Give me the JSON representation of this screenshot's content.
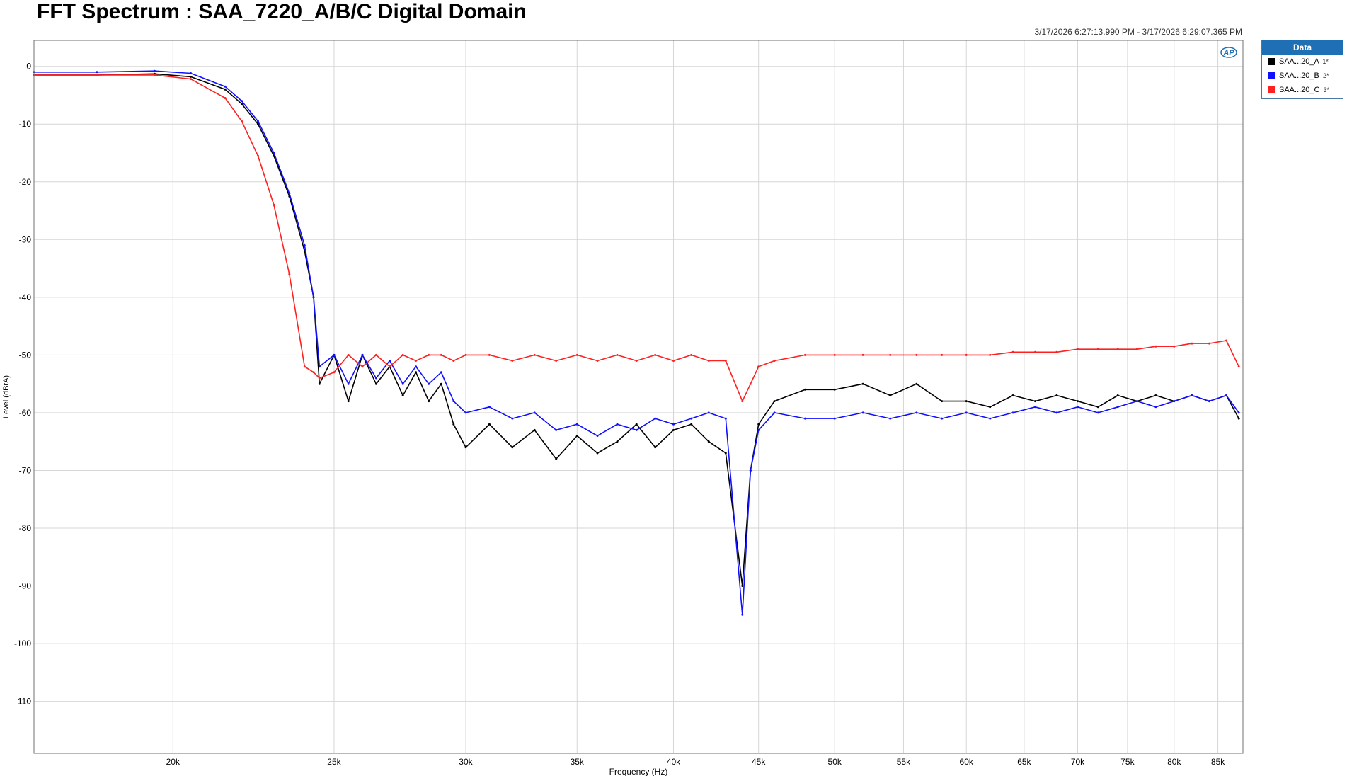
{
  "title": "FFT Spectrum : SAA_7220_A/B/C Digital Domain",
  "timestamp": "3/17/2026 6:27:13.990 PM - 3/17/2026 6:29:07.365 PM",
  "logo_text": "AP",
  "legend": {
    "header": "Data",
    "items": [
      {
        "label": "SAA...20_A",
        "suffix": "1*",
        "color": "#000000"
      },
      {
        "label": "SAA...20_B",
        "suffix": "2*",
        "color": "#1010ff"
      },
      {
        "label": "SAA...20_C",
        "suffix": "3*",
        "color": "#ff2020"
      }
    ]
  },
  "chart_data": {
    "type": "line",
    "title": "FFT Spectrum : SAA_7220_A/B/C Digital Domain",
    "xlabel": "Frequency (Hz)",
    "ylabel": "Level (dBrA)",
    "x_scale": "log",
    "xlim": [
      16500,
      88000
    ],
    "ylim": [
      -119,
      4.5
    ],
    "grid": true,
    "legend_position": "right",
    "x_ticks": [
      {
        "value": 20000,
        "label": "20k"
      },
      {
        "value": 25000,
        "label": "25k"
      },
      {
        "value": 30000,
        "label": "30k"
      },
      {
        "value": 35000,
        "label": "35k"
      },
      {
        "value": 40000,
        "label": "40k"
      },
      {
        "value": 45000,
        "label": "45k"
      },
      {
        "value": 50000,
        "label": "50k"
      },
      {
        "value": 55000,
        "label": "55k"
      },
      {
        "value": 60000,
        "label": "60k"
      },
      {
        "value": 65000,
        "label": "65k"
      },
      {
        "value": 70000,
        "label": "70k"
      },
      {
        "value": 75000,
        "label": "75k"
      },
      {
        "value": 80000,
        "label": "80k"
      },
      {
        "value": 85000,
        "label": "85k"
      }
    ],
    "y_ticks": [
      {
        "value": 0,
        "label": "0"
      },
      {
        "value": -10,
        "label": "-10"
      },
      {
        "value": -20,
        "label": "-20"
      },
      {
        "value": -30,
        "label": "-30"
      },
      {
        "value": -40,
        "label": "-40"
      },
      {
        "value": -50,
        "label": "-50"
      },
      {
        "value": -60,
        "label": "-60"
      },
      {
        "value": -70,
        "label": "-70"
      },
      {
        "value": -80,
        "label": "-80"
      },
      {
        "value": -90,
        "label": "-90"
      },
      {
        "value": -100,
        "label": "-100"
      },
      {
        "value": -110,
        "label": "-110"
      }
    ],
    "series": [
      {
        "name": "SAA...20_A",
        "color": "#000000",
        "x": [
          16500,
          18000,
          19500,
          20500,
          21500,
          22000,
          22500,
          23000,
          23500,
          24000,
          24300,
          24500,
          25000,
          25500,
          26000,
          26500,
          27000,
          27500,
          28000,
          28500,
          29000,
          29500,
          30000,
          31000,
          32000,
          33000,
          34000,
          35000,
          36000,
          37000,
          38000,
          39000,
          40000,
          41000,
          42000,
          43000,
          44000,
          44500,
          45000,
          46000,
          48000,
          50000,
          52000,
          54000,
          56000,
          58000,
          60000,
          62000,
          64000,
          66000,
          68000,
          70000,
          72000,
          74000,
          76000,
          78000,
          80000,
          82000,
          84000,
          86000,
          87500
        ],
        "y": [
          -1.5,
          -1.5,
          -1.3,
          -1.8,
          -4,
          -6.5,
          -10,
          -15.5,
          -22.5,
          -32,
          -40,
          -55,
          -50,
          -58,
          -50,
          -55,
          -52,
          -57,
          -53,
          -58,
          -55,
          -62,
          -66,
          -62,
          -66,
          -63,
          -68,
          -64,
          -67,
          -65,
          -62,
          -66,
          -63,
          -62,
          -65,
          -67,
          -90,
          -70,
          -62,
          -58,
          -56,
          -56,
          -55,
          -57,
          -55,
          -58,
          -58,
          -59,
          -57,
          -58,
          -57,
          -58,
          -59,
          -57,
          -58,
          -57,
          -58,
          -57,
          -58,
          -57,
          -61
        ]
      },
      {
        "name": "SAA...20_B",
        "color": "#1010ff",
        "x": [
          16500,
          18000,
          19500,
          20500,
          21500,
          22000,
          22500,
          23000,
          23500,
          24000,
          24300,
          24500,
          25000,
          25500,
          26000,
          26500,
          27000,
          27500,
          28000,
          28500,
          29000,
          29500,
          30000,
          31000,
          32000,
          33000,
          34000,
          35000,
          36000,
          37000,
          38000,
          39000,
          40000,
          41000,
          42000,
          43000,
          44000,
          44500,
          45000,
          46000,
          48000,
          50000,
          52000,
          54000,
          56000,
          58000,
          60000,
          62000,
          64000,
          66000,
          68000,
          70000,
          72000,
          74000,
          76000,
          78000,
          80000,
          82000,
          84000,
          86000,
          87500
        ],
        "y": [
          -1,
          -1,
          -0.8,
          -1.2,
          -3.5,
          -6,
          -9.5,
          -15,
          -22,
          -31,
          -40,
          -52,
          -50,
          -55,
          -50,
          -54,
          -51,
          -55,
          -52,
          -55,
          -53,
          -58,
          -60,
          -59,
          -61,
          -60,
          -63,
          -62,
          -64,
          -62,
          -63,
          -61,
          -62,
          -61,
          -60,
          -61,
          -95,
          -70,
          -63,
          -60,
          -61,
          -61,
          -60,
          -61,
          -60,
          -61,
          -60,
          -61,
          -60,
          -59,
          -60,
          -59,
          -60,
          -59,
          -58,
          -59,
          -58,
          -57,
          -58,
          -57,
          -60
        ]
      },
      {
        "name": "SAA...20_C",
        "color": "#ff2020",
        "x": [
          16500,
          18000,
          19500,
          20500,
          21500,
          22000,
          22500,
          23000,
          23500,
          24000,
          24300,
          24500,
          25000,
          25500,
          26000,
          26500,
          27000,
          27500,
          28000,
          28500,
          29000,
          29500,
          30000,
          31000,
          32000,
          33000,
          34000,
          35000,
          36000,
          37000,
          38000,
          39000,
          40000,
          41000,
          42000,
          43000,
          44000,
          44500,
          45000,
          46000,
          48000,
          50000,
          52000,
          54000,
          56000,
          58000,
          60000,
          62000,
          64000,
          66000,
          68000,
          70000,
          72000,
          74000,
          76000,
          78000,
          80000,
          82000,
          84000,
          86000,
          87500
        ],
        "y": [
          -1.5,
          -1.5,
          -1.5,
          -2.2,
          -5.5,
          -9.5,
          -15.5,
          -24,
          -36,
          -52,
          -53,
          -54,
          -53,
          -50,
          -52,
          -50,
          -52,
          -50,
          -51,
          -50,
          -50,
          -51,
          -50,
          -50,
          -51,
          -50,
          -51,
          -50,
          -51,
          -50,
          -51,
          -50,
          -51,
          -50,
          -51,
          -51,
          -58,
          -55,
          -52,
          -51,
          -50,
          -50,
          -50,
          -50,
          -50,
          -50,
          -50,
          -50,
          -49.5,
          -49.5,
          -49.5,
          -49,
          -49,
          -49,
          -49,
          -48.5,
          -48.5,
          -48,
          -48,
          -47.5,
          -52
        ]
      }
    ]
  }
}
